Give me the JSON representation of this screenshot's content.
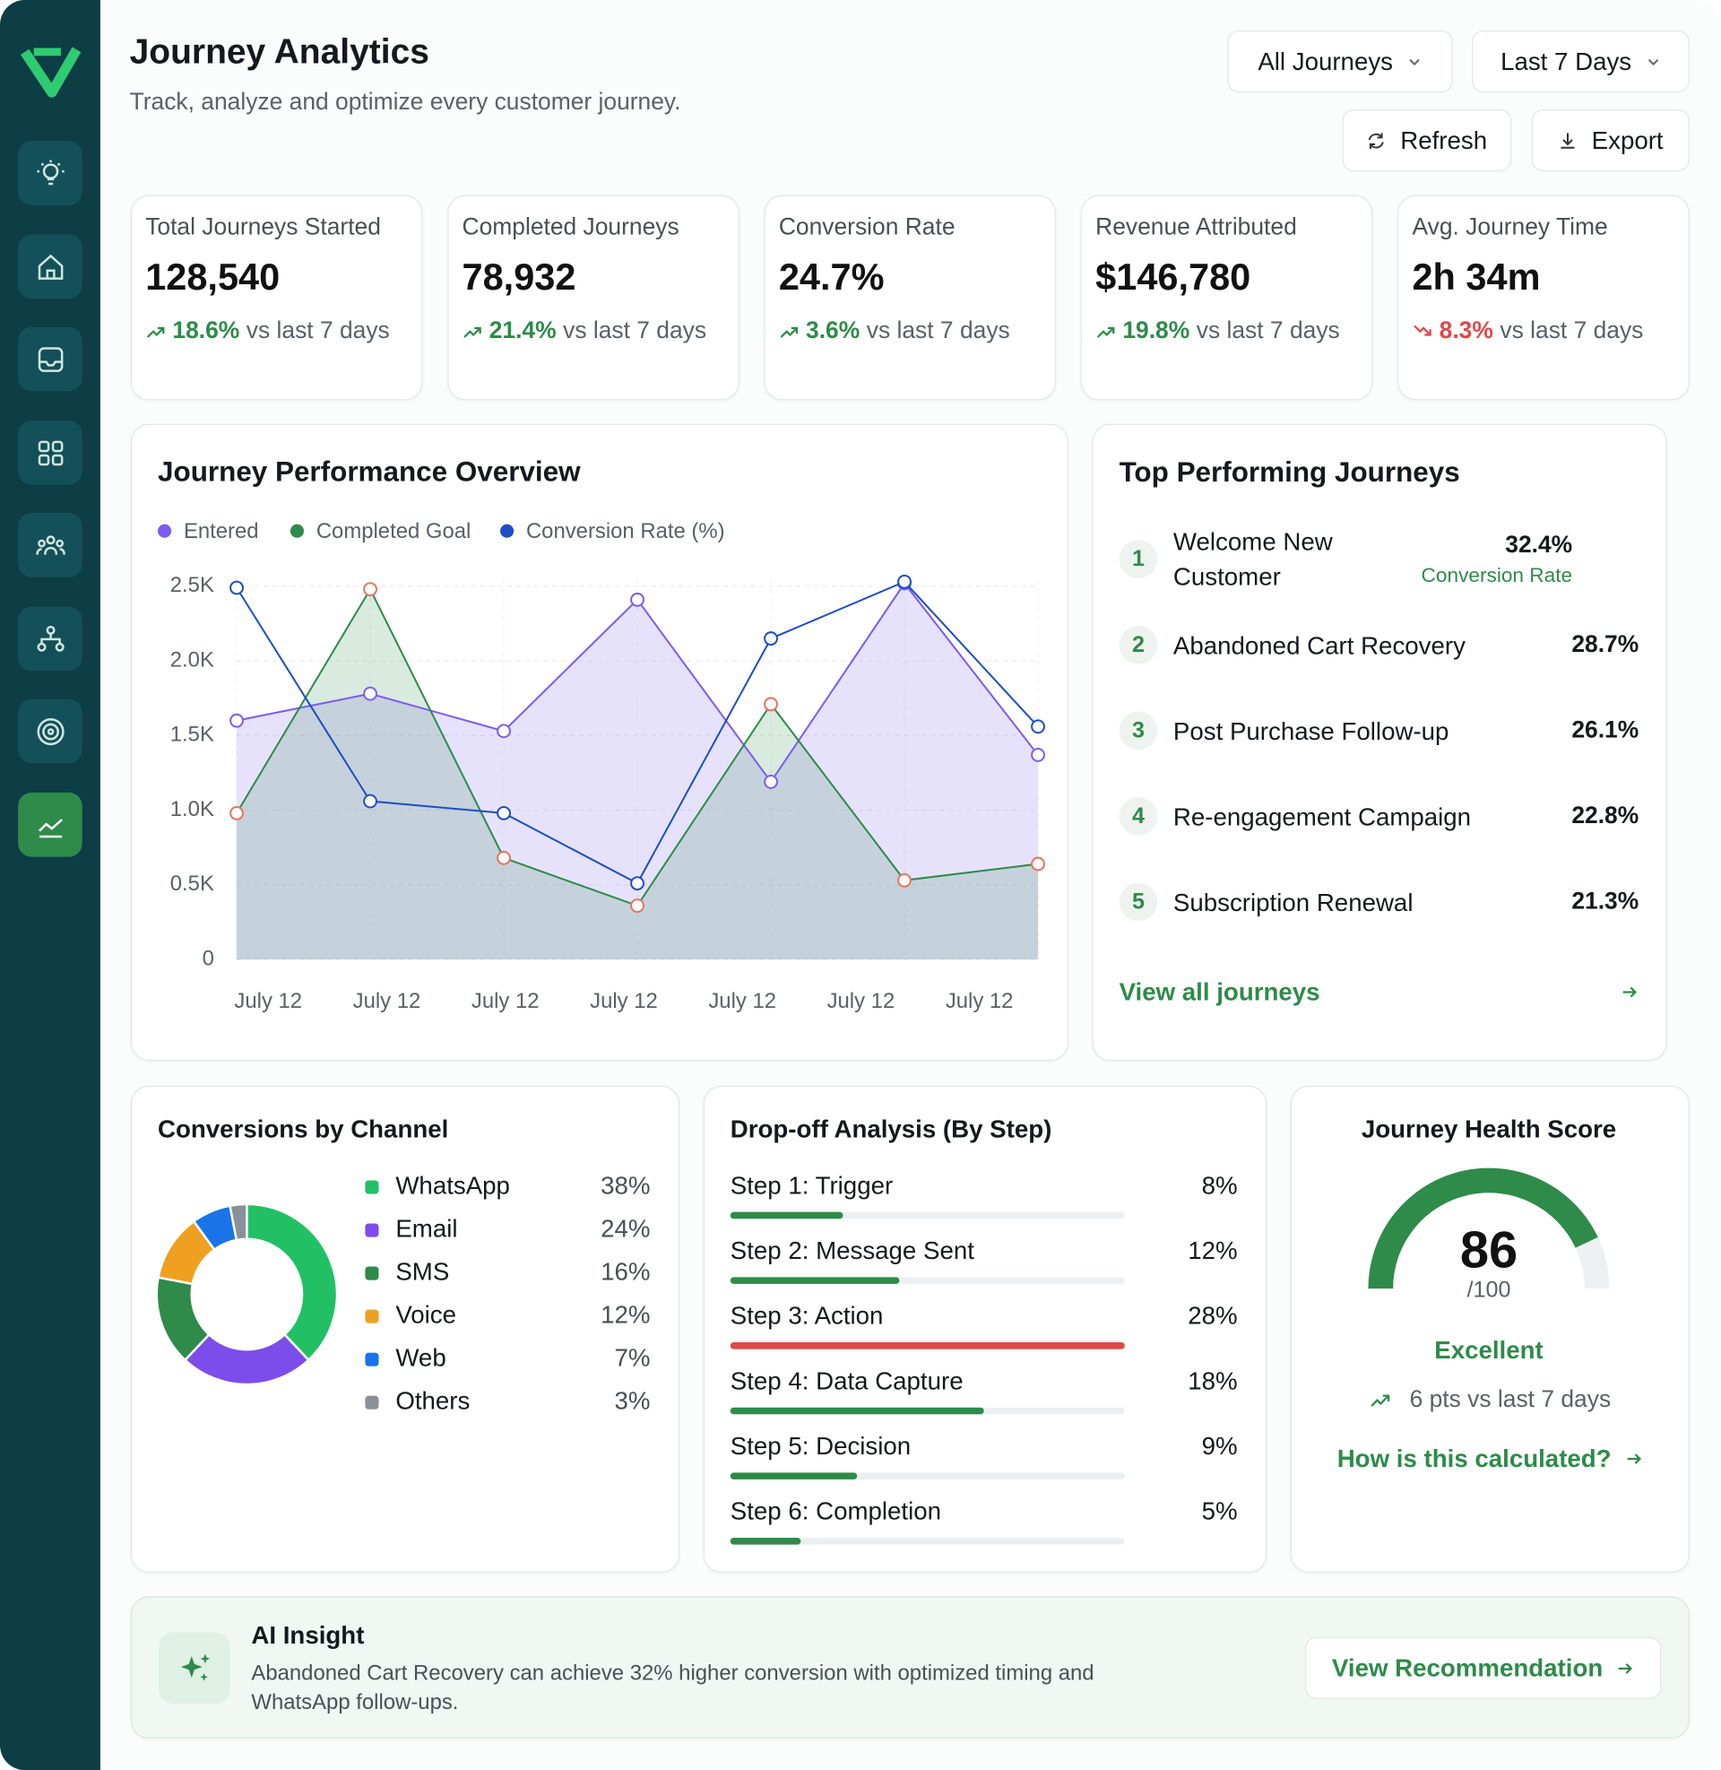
{
  "header": {
    "title": "Journey Analytics",
    "subtitle": "Track, analyze and optimize every customer journey.",
    "filters": [
      "All Journeys",
      "Last 7 Days"
    ],
    "actions": [
      "Refresh",
      "Export"
    ]
  },
  "kpis": [
    {
      "label": "Total Journeys Started",
      "value": "128,540",
      "change": "18.6%",
      "comparison": "vs last 7 days",
      "trend": "up",
      "color": "#2e8b4a"
    },
    {
      "label": "Completed Journeys",
      "value": "78,932",
      "change": "21.4%",
      "comparison": "vs last 7 days",
      "trend": "up",
      "color": "#2e8b4a"
    },
    {
      "label": "Conversion Rate",
      "value": "24.7%",
      "change": "3.6%",
      "comparison": "vs last 7 days",
      "trend": "up",
      "color": "#2e8b4a"
    },
    {
      "label": "Revenue Attributed",
      "value": "$146,780",
      "change": "19.8%",
      "comparison": "vs last 7 days",
      "trend": "up",
      "color": "#2e8b4a"
    },
    {
      "label": "Avg. Journey Time",
      "value": "2h 34m",
      "change": "8.3%",
      "comparison": "vs last 7 days",
      "trend": "down",
      "color": "#e04848"
    }
  ],
  "chart_data": [
    {
      "type": "line",
      "title": "Journey Performance Overview",
      "categories": [
        "July 12",
        "July 12",
        "July 12",
        "July 12",
        "July 12",
        "July 12",
        "July 12"
      ],
      "series": [
        {
          "name": "Entered",
          "color": "#7c5cf0",
          "marker_color": "#7c5cf0",
          "fill": true,
          "values": [
            1600,
            1780,
            1530,
            2410,
            1190,
            2520,
            1370
          ]
        },
        {
          "name": "Completed Goal",
          "color": "#2e8b4a",
          "marker_color": "#e8735f",
          "fill": true,
          "values": [
            980,
            2480,
            680,
            360,
            1710,
            530,
            640
          ]
        },
        {
          "name": "Conversion Rate (%)",
          "color": "#1d4fc4",
          "marker_color": "#1d4fc4",
          "fill": false,
          "values": [
            2490,
            1060,
            980,
            510,
            2150,
            2530,
            1560
          ]
        }
      ],
      "ylim": [
        0,
        2500
      ],
      "yticks": [
        0,
        {
          "value": 500,
          "label": "0.5K"
        },
        {
          "value": 1000,
          "label": "1.0K"
        },
        {
          "value": 1500,
          "label": "1.5K"
        },
        {
          "value": 2000,
          "label": "2.0K"
        },
        {
          "value": 2500,
          "label": "2.5K"
        }
      ],
      "grid": true,
      "legend": "top-left"
    },
    {
      "type": "donut",
      "title": "Conversions by Channel",
      "categories": [
        "WhatsApp",
        "Email",
        "SMS",
        "Voice",
        "Web",
        "Others"
      ],
      "values": [
        38,
        24,
        16,
        12,
        7,
        3
      ],
      "value_labels": [
        "38%",
        "24%",
        "16%",
        "12%",
        "7%",
        "3%"
      ],
      "colors": [
        "#22c065",
        "#7c4dea",
        "#2e8b4a",
        "#f0a020",
        "#1a73e8",
        "#8a9099"
      ]
    },
    {
      "type": "bar",
      "orientation": "horizontal",
      "title": "Drop-off Analysis (By Step)",
      "categories": [
        "Step 1: Trigger",
        "Step 2: Message Sent",
        "Step 3: Action",
        "Step 4: Data Capture",
        "Step 5: Decision",
        "Step 6: Completion"
      ],
      "values": [
        8,
        12,
        28,
        18,
        9,
        5
      ],
      "value_labels": [
        "8%",
        "12%",
        "28%",
        "18%",
        "9%",
        "5%"
      ],
      "colors": [
        "#2e8b4a",
        "#2e8b4a",
        "#e04848",
        "#2e8b4a",
        "#2e8b4a",
        "#2e8b4a"
      ]
    },
    {
      "type": "gauge",
      "title": "Journey Health Score",
      "value": 86,
      "max": 100,
      "max_label": "/100",
      "color": "#2e8b4a",
      "status": "Excellent",
      "change": "6 pts vs last 7 days",
      "link": "How is this calculated?"
    }
  ],
  "top_journeys": {
    "title": "Top Performing Journeys",
    "metric": "Conversion Rate",
    "items": [
      {
        "rank": 1,
        "name": "Welcome New Customer",
        "rate": "32.4%"
      },
      {
        "rank": 2,
        "name": "Abandoned Cart Recovery",
        "rate": "28.7%"
      },
      {
        "rank": 3,
        "name": "Post Purchase Follow-up",
        "rate": "26.1%"
      },
      {
        "rank": 4,
        "name": "Re-engagement Campaign",
        "rate": "22.8%"
      },
      {
        "rank": 5,
        "name": "Subscription Renewal",
        "rate": "21.3%"
      }
    ],
    "link": "View all journeys"
  },
  "insight": {
    "title": "AI Insight",
    "text": "Abandoned Cart Recovery can achieve 32% higher conversion with optimized timing and WhatsApp follow-ups.",
    "action": "View Recommendation"
  }
}
